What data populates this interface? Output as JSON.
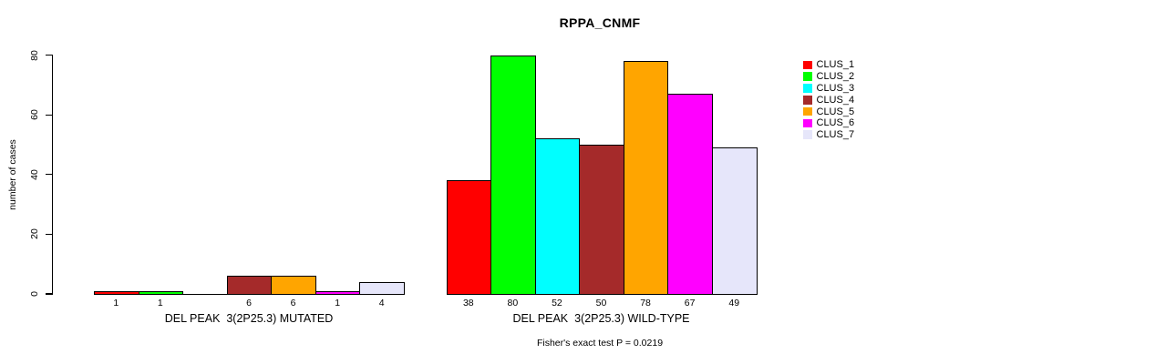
{
  "title": "RPPA_CNMF",
  "y_axis": {
    "label": "number of cases"
  },
  "footer": "Fisher's exact test P = 0.0219",
  "legend": {
    "items": [
      {
        "label": "CLUS_1",
        "color": "#ff0000"
      },
      {
        "label": "CLUS_2",
        "color": "#00ff00"
      },
      {
        "label": "CLUS_3",
        "color": "#00ffff"
      },
      {
        "label": "CLUS_4",
        "color": "#a52a2a"
      },
      {
        "label": "CLUS_5",
        "color": "#ffa500"
      },
      {
        "label": "CLUS_6",
        "color": "#ff00ff"
      },
      {
        "label": "CLUS_7",
        "color": "#e6e6fa"
      }
    ]
  },
  "chart_data": {
    "type": "bar",
    "title": "RPPA_CNMF",
    "ylabel": "number of cases",
    "ylim": [
      0,
      80
    ],
    "yticks": [
      0,
      20,
      40,
      60,
      80
    ],
    "grid": false,
    "legend_position": "right",
    "categories": [
      "DEL PEAK  3(2P25.3) MUTATED",
      "DEL PEAK  3(2P25.3) WILD-TYPE"
    ],
    "series": [
      {
        "name": "CLUS_1",
        "color": "#ff0000",
        "values": [
          1,
          38
        ]
      },
      {
        "name": "CLUS_2",
        "color": "#00ff00",
        "values": [
          1,
          80
        ]
      },
      {
        "name": "CLUS_3",
        "color": "#00ffff",
        "values": [
          0,
          52
        ]
      },
      {
        "name": "CLUS_4",
        "color": "#a52a2a",
        "values": [
          6,
          50
        ]
      },
      {
        "name": "CLUS_5",
        "color": "#ffa500",
        "values": [
          6,
          78
        ]
      },
      {
        "name": "CLUS_6",
        "color": "#ff00ff",
        "values": [
          1,
          67
        ]
      },
      {
        "name": "CLUS_7",
        "color": "#e6e6fa",
        "values": [
          4,
          49
        ]
      }
    ],
    "bar_value_labels": [
      [
        "1",
        "1",
        "",
        "6",
        "6",
        "1",
        "4"
      ],
      [
        "38",
        "80",
        "52",
        "50",
        "78",
        "67",
        "49"
      ]
    ],
    "annotation": "Fisher's exact test P = 0.0219"
  }
}
